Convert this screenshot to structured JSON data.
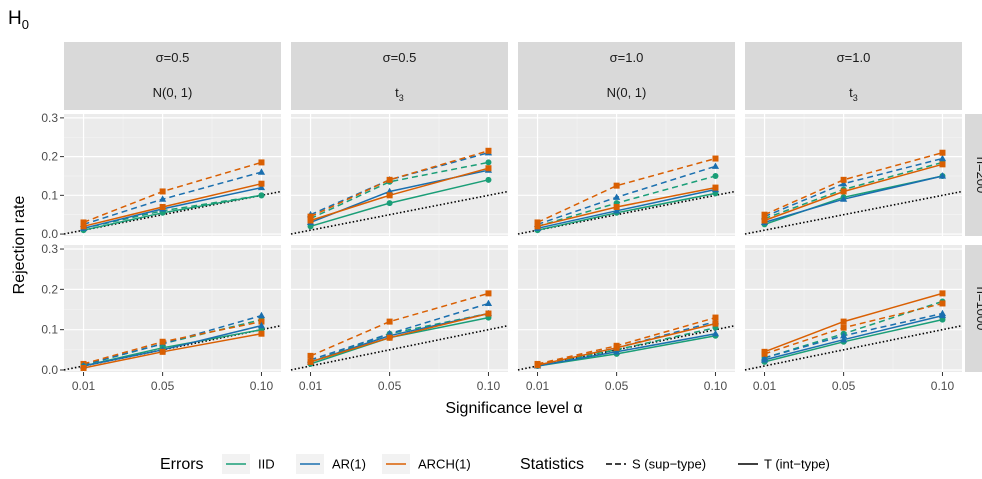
{
  "chart_data": {
    "type": "line",
    "title": "H",
    "title_subscript": "0",
    "xlabel": "Significance level α",
    "ylabel": "Rejection rate",
    "x": [
      0.01,
      0.05,
      0.1
    ],
    "x_tick_labels": [
      "0.01",
      "0.05",
      "0.10"
    ],
    "y_ticks": [
      0.0,
      0.1,
      0.2,
      0.3
    ],
    "y_tick_labels": [
      "0.0",
      "0.1",
      "0.2",
      "0.3"
    ],
    "ylim": [
      -0.005,
      0.31
    ],
    "grid": true,
    "reference_line": "y = x (dotted)",
    "col_strips": [
      {
        "sigma": "σ=0.5",
        "dist": "N(0, 1)"
      },
      {
        "sigma": "σ=0.5",
        "dist": "t",
        "dist_sub": "3"
      },
      {
        "sigma": "σ=1.0",
        "dist": "N(0, 1)"
      },
      {
        "sigma": "σ=1.0",
        "dist": "t",
        "dist_sub": "3"
      }
    ],
    "row_strips": [
      "n=200",
      "n=1000"
    ],
    "colors": {
      "IID": "#1a9e77",
      "AR(1)": "#1a6faf",
      "ARCH(1)": "#d95f02"
    },
    "legend": {
      "position": "bottom",
      "errors_title": "Errors",
      "errors": [
        "IID",
        "AR(1)",
        "ARCH(1)"
      ],
      "stats_title": "Statistics",
      "stats": [
        "S (sup−type)",
        "T (int−type)"
      ]
    },
    "panels": [
      {
        "row": 0,
        "col": 0,
        "series": [
          {
            "errors": "IID",
            "stat": "S",
            "values": [
              0.015,
              0.06,
              0.1
            ]
          },
          {
            "errors": "AR(1)",
            "stat": "S",
            "values": [
              0.025,
              0.09,
              0.16
            ]
          },
          {
            "errors": "ARCH(1)",
            "stat": "S",
            "values": [
              0.03,
              0.11,
              0.185
            ]
          },
          {
            "errors": "IID",
            "stat": "T",
            "values": [
              0.01,
              0.055,
              0.1
            ]
          },
          {
            "errors": "AR(1)",
            "stat": "T",
            "values": [
              0.015,
              0.065,
              0.12
            ]
          },
          {
            "errors": "ARCH(1)",
            "stat": "T",
            "values": [
              0.02,
              0.07,
              0.13
            ]
          }
        ]
      },
      {
        "row": 0,
        "col": 1,
        "series": [
          {
            "errors": "IID",
            "stat": "S",
            "values": [
              0.04,
              0.135,
              0.185
            ]
          },
          {
            "errors": "AR(1)",
            "stat": "S",
            "values": [
              0.05,
              0.14,
              0.21
            ]
          },
          {
            "errors": "ARCH(1)",
            "stat": "S",
            "values": [
              0.045,
              0.14,
              0.215
            ]
          },
          {
            "errors": "IID",
            "stat": "T",
            "values": [
              0.02,
              0.08,
              0.14
            ]
          },
          {
            "errors": "AR(1)",
            "stat": "T",
            "values": [
              0.03,
              0.11,
              0.165
            ]
          },
          {
            "errors": "ARCH(1)",
            "stat": "T",
            "values": [
              0.035,
              0.1,
              0.17
            ]
          }
        ]
      },
      {
        "row": 0,
        "col": 2,
        "series": [
          {
            "errors": "IID",
            "stat": "S",
            "values": [
              0.02,
              0.08,
              0.15
            ]
          },
          {
            "errors": "AR(1)",
            "stat": "S",
            "values": [
              0.025,
              0.095,
              0.175
            ]
          },
          {
            "errors": "ARCH(1)",
            "stat": "S",
            "values": [
              0.03,
              0.125,
              0.195
            ]
          },
          {
            "errors": "IID",
            "stat": "T",
            "values": [
              0.01,
              0.055,
              0.105
            ]
          },
          {
            "errors": "AR(1)",
            "stat": "T",
            "values": [
              0.015,
              0.06,
              0.115
            ]
          },
          {
            "errors": "ARCH(1)",
            "stat": "T",
            "values": [
              0.02,
              0.07,
              0.12
            ]
          }
        ]
      },
      {
        "row": 0,
        "col": 3,
        "series": [
          {
            "errors": "IID",
            "stat": "S",
            "values": [
              0.04,
              0.115,
              0.185
            ]
          },
          {
            "errors": "AR(1)",
            "stat": "S",
            "values": [
              0.045,
              0.13,
              0.195
            ]
          },
          {
            "errors": "ARCH(1)",
            "stat": "S",
            "values": [
              0.05,
              0.14,
              0.21
            ]
          },
          {
            "errors": "IID",
            "stat": "T",
            "values": [
              0.025,
              0.095,
              0.15
            ]
          },
          {
            "errors": "AR(1)",
            "stat": "T",
            "values": [
              0.03,
              0.09,
              0.15
            ]
          },
          {
            "errors": "ARCH(1)",
            "stat": "T",
            "values": [
              0.035,
              0.11,
              0.18
            ]
          }
        ]
      },
      {
        "row": 1,
        "col": 0,
        "series": [
          {
            "errors": "IID",
            "stat": "S",
            "values": [
              0.012,
              0.065,
              0.125
            ]
          },
          {
            "errors": "AR(1)",
            "stat": "S",
            "values": [
              0.013,
              0.065,
              0.135
            ]
          },
          {
            "errors": "ARCH(1)",
            "stat": "S",
            "values": [
              0.015,
              0.07,
              0.12
            ]
          },
          {
            "errors": "IID",
            "stat": "T",
            "values": [
              0.01,
              0.055,
              0.1
            ]
          },
          {
            "errors": "AR(1)",
            "stat": "T",
            "values": [
              0.01,
              0.05,
              0.11
            ]
          },
          {
            "errors": "ARCH(1)",
            "stat": "T",
            "values": [
              0.005,
              0.045,
              0.09
            ]
          }
        ]
      },
      {
        "row": 1,
        "col": 1,
        "series": [
          {
            "errors": "IID",
            "stat": "S",
            "values": [
              0.02,
              0.09,
              0.14
            ]
          },
          {
            "errors": "AR(1)",
            "stat": "S",
            "values": [
              0.025,
              0.09,
              0.165
            ]
          },
          {
            "errors": "ARCH(1)",
            "stat": "S",
            "values": [
              0.035,
              0.12,
              0.19
            ]
          },
          {
            "errors": "IID",
            "stat": "T",
            "values": [
              0.015,
              0.08,
              0.13
            ]
          },
          {
            "errors": "AR(1)",
            "stat": "T",
            "values": [
              0.02,
              0.085,
              0.14
            ]
          },
          {
            "errors": "ARCH(1)",
            "stat": "T",
            "values": [
              0.02,
              0.08,
              0.14
            ]
          }
        ]
      },
      {
        "row": 1,
        "col": 2,
        "series": [
          {
            "errors": "IID",
            "stat": "S",
            "values": [
              0.012,
              0.05,
              0.105
            ]
          },
          {
            "errors": "AR(1)",
            "stat": "S",
            "values": [
              0.013,
              0.055,
              0.12
            ]
          },
          {
            "errors": "ARCH(1)",
            "stat": "S",
            "values": [
              0.015,
              0.06,
              0.13
            ]
          },
          {
            "errors": "IID",
            "stat": "T",
            "values": [
              0.01,
              0.04,
              0.085
            ]
          },
          {
            "errors": "AR(1)",
            "stat": "T",
            "values": [
              0.01,
              0.045,
              0.09
            ]
          },
          {
            "errors": "ARCH(1)",
            "stat": "T",
            "values": [
              0.012,
              0.055,
              0.115
            ]
          }
        ]
      },
      {
        "row": 1,
        "col": 3,
        "series": [
          {
            "errors": "IID",
            "stat": "S",
            "values": [
              0.03,
              0.09,
              0.17
            ]
          },
          {
            "errors": "AR(1)",
            "stat": "S",
            "values": [
              0.03,
              0.085,
              0.14
            ]
          },
          {
            "errors": "ARCH(1)",
            "stat": "S",
            "values": [
              0.04,
              0.105,
              0.165
            ]
          },
          {
            "errors": "IID",
            "stat": "T",
            "values": [
              0.02,
              0.07,
              0.125
            ]
          },
          {
            "errors": "AR(1)",
            "stat": "T",
            "values": [
              0.025,
              0.075,
              0.135
            ]
          },
          {
            "errors": "ARCH(1)",
            "stat": "T",
            "values": [
              0.045,
              0.12,
              0.19
            ]
          }
        ]
      }
    ]
  }
}
